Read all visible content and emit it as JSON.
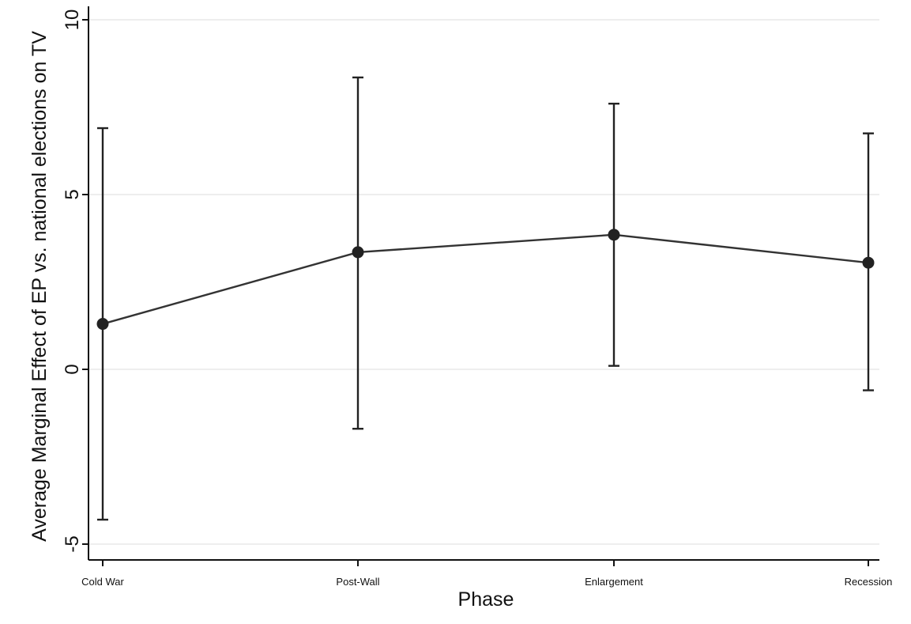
{
  "chart_data": {
    "type": "line",
    "title": "",
    "xlabel": "Phase",
    "ylabel": "Average Marginal Effect of EP vs. national elections on TV",
    "categories": [
      "Cold War",
      "Post-Wall",
      "Enlargement",
      "Recession"
    ],
    "series": [
      {
        "values": [
          1.3,
          3.35,
          3.85,
          3.05
        ],
        "ci_lower": [
          -4.3,
          -1.7,
          0.1,
          -0.6
        ],
        "ci_upper": [
          6.9,
          8.35,
          7.6,
          6.75
        ]
      }
    ],
    "y_ticks": [
      -5,
      0,
      5,
      10
    ],
    "y_tick_labels": [
      "-5",
      "0",
      "5",
      "10"
    ],
    "ylim": [
      -5.5,
      10.3
    ],
    "grid": true,
    "legend": "none",
    "colors": {
      "line": "#333333",
      "marker": "#222222",
      "grid": "#e4e4e4",
      "axis": "#111111"
    }
  }
}
